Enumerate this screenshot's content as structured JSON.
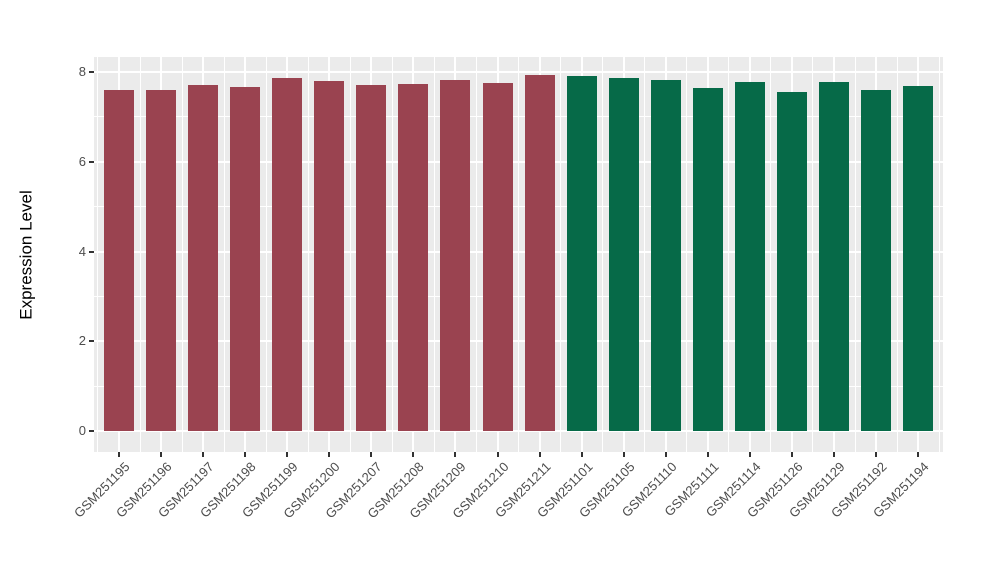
{
  "chart_data": {
    "type": "bar",
    "title": "",
    "xlabel": "",
    "ylabel": "Expression Level",
    "ylim": [
      0,
      8.4
    ],
    "yticks": [
      0,
      2,
      4,
      6,
      8
    ],
    "yticks_minor": [
      1,
      3,
      5,
      7
    ],
    "legend_position": "none",
    "panel_background": "#EBEBEB",
    "grid_color": "#FFFFFF",
    "axis_text_color": "#4D4D4D",
    "group_colors": {
      "group1": "#9A4350",
      "group2": "#066A48"
    },
    "categories": [
      "GSM251195",
      "GSM251196",
      "GSM251197",
      "GSM251198",
      "GSM251199",
      "GSM251200",
      "GSM251207",
      "GSM251208",
      "GSM251209",
      "GSM251210",
      "GSM251211",
      "GSM251101",
      "GSM251105",
      "GSM251110",
      "GSM251111",
      "GSM251114",
      "GSM251126",
      "GSM251129",
      "GSM251192",
      "GSM251194"
    ],
    "bars": [
      {
        "label": "GSM251195",
        "value": 7.6,
        "group": "group1"
      },
      {
        "label": "GSM251196",
        "value": 7.6,
        "group": "group1"
      },
      {
        "label": "GSM251197",
        "value": 7.7,
        "group": "group1"
      },
      {
        "label": "GSM251198",
        "value": 7.67,
        "group": "group1"
      },
      {
        "label": "GSM251199",
        "value": 7.87,
        "group": "group1"
      },
      {
        "label": "GSM251200",
        "value": 7.79,
        "group": "group1"
      },
      {
        "label": "GSM251207",
        "value": 7.72,
        "group": "group1"
      },
      {
        "label": "GSM251208",
        "value": 7.73,
        "group": "group1"
      },
      {
        "label": "GSM251209",
        "value": 7.83,
        "group": "group1"
      },
      {
        "label": "GSM251210",
        "value": 7.76,
        "group": "group1"
      },
      {
        "label": "GSM251211",
        "value": 7.93,
        "group": "group1"
      },
      {
        "label": "GSM251101",
        "value": 7.91,
        "group": "group2"
      },
      {
        "label": "GSM251105",
        "value": 7.87,
        "group": "group2"
      },
      {
        "label": "GSM251110",
        "value": 7.82,
        "group": "group2"
      },
      {
        "label": "GSM251111",
        "value": 7.64,
        "group": "group2"
      },
      {
        "label": "GSM251114",
        "value": 7.78,
        "group": "group2"
      },
      {
        "label": "GSM251126",
        "value": 7.55,
        "group": "group2"
      },
      {
        "label": "GSM251129",
        "value": 7.78,
        "group": "group2"
      },
      {
        "label": "GSM251192",
        "value": 7.6,
        "group": "group2"
      },
      {
        "label": "GSM251194",
        "value": 7.69,
        "group": "group2"
      }
    ]
  }
}
